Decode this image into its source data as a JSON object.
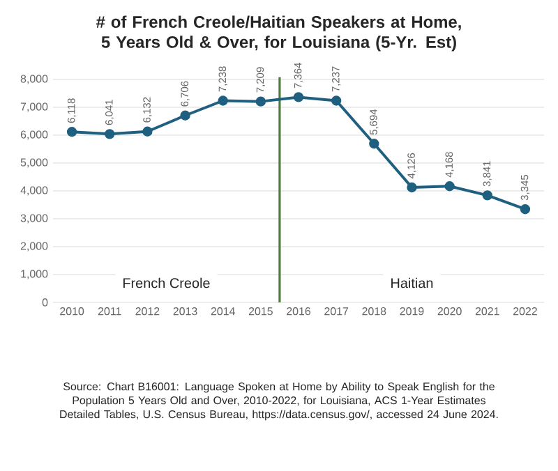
{
  "chart_data": {
    "type": "line",
    "title": "# of French Creole/Haitian Speakers at Home, 5 Years Old & Over, for Louisiana (5-Yr. Est)",
    "x": [
      2010,
      2011,
      2012,
      2013,
      2014,
      2015,
      2016,
      2017,
      2018,
      2019,
      2020,
      2021,
      2022
    ],
    "series": [
      {
        "color": "#1f5f7f",
        "values": [
          6118,
          6041,
          6132,
          6706,
          7238,
          7209,
          7364,
          7237,
          5694,
          4126,
          4168,
          3841,
          3345
        ],
        "value_labels": [
          "6,118",
          "6,041",
          "6,132",
          "6,706",
          "7,238",
          "7,209",
          "7,364",
          "7,237",
          "5,694",
          "4,126",
          "4,168",
          "3,841",
          "3,345"
        ]
      }
    ],
    "xlim": [
      2009.5,
      2022.5
    ],
    "xticks": [
      2010,
      2011,
      2012,
      2013,
      2014,
      2015,
      2016,
      2017,
      2018,
      2019,
      2020,
      2021,
      2022
    ],
    "ylim": [
      0,
      8000
    ],
    "yticks": [
      {
        "value": 0,
        "label": "0"
      },
      {
        "value": 1000,
        "label": "1,000"
      },
      {
        "value": 2000,
        "label": "2,000"
      },
      {
        "value": 3000,
        "label": "3,000"
      },
      {
        "value": 4000,
        "label": "4,000"
      },
      {
        "value": 5000,
        "label": "5,000"
      },
      {
        "value": 6000,
        "label": "6,000"
      },
      {
        "value": 7000,
        "label": "7,000"
      },
      {
        "value": 8000,
        "label": "8,000"
      }
    ],
    "ref_lines": [
      {
        "axis": "x",
        "value": 2015.5,
        "color": "#4e7d3a"
      }
    ],
    "annotations": [
      "French Creole",
      "Haitian",
      "Source: Chart B16001: Language Spoken at Home by Ability to Speak English for the Population 5 Years Old and Over, 2010-2022, for Louisiana, ACS 1-Year Estimates Detailed Tables, U.S. Census Bureau, https://data.census.gov/, accessed 24 June 2024."
    ],
    "grid": "y",
    "marker": "circle",
    "line_style": "solid"
  }
}
